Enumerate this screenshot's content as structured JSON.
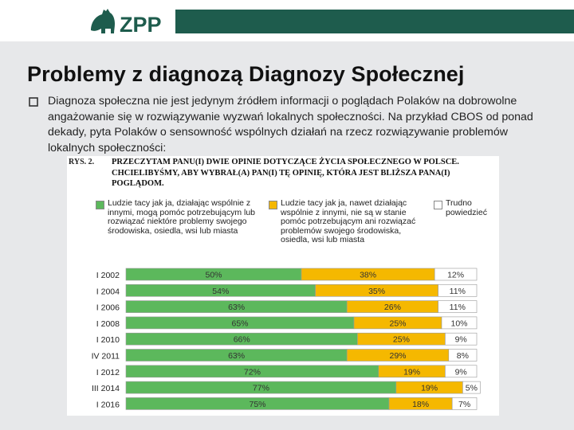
{
  "header": {
    "logo_text": "ZPP",
    "brand_color": "#1e5c4d"
  },
  "slide": {
    "title": "Problemy z diagnozą Diagnozy Społecznej",
    "bullet_text": "Diagnoza społeczna nie jest jedynym źródłem informacji o poglądach Polaków na dobrowolne angażowanie się w rozwiązywanie wyzwań lokalnych społeczności. Na przykład CBOS od ponad dekady, pyta Polaków o sensowność wspólnych działań na rzecz rozwiązywanie problemów lokalnych społeczności:"
  },
  "figure": {
    "label": "RYS. 2.",
    "question": "PRZECZYTAM PANU(I) DWIE OPINIE DOTYCZĄCE ŻYCIA SPOŁECZNEGO W POLSCE. CHCIELIBYŚMY, ABY WYBRAŁ(A) PAN(I) TĘ OPINIĘ, KTÓRA JEST BLIŻSZA PANA(I) POGLĄDOM."
  },
  "chart_data": {
    "type": "bar",
    "orientation": "horizontal",
    "stacked": true,
    "percent": true,
    "categories": [
      "I 2002",
      "I 2004",
      "I 2006",
      "I 2008",
      "I 2010",
      "IV 2011",
      "I 2012",
      "III 2014",
      "I 2016"
    ],
    "series": [
      {
        "name": "Ludzie tacy jak ja, działając wspólnie z innymi, mogą pomóc potrzebującym lub rozwiązać niektóre problemy swojego środowiska, osiedla, wsi lub miasta",
        "color": "#5cb85c",
        "values": [
          50,
          54,
          63,
          65,
          66,
          63,
          72,
          77,
          75
        ],
        "labels": [
          "50%",
          "54%",
          "63%",
          "65%",
          "66%",
          "63%",
          "72%",
          "77%",
          "75%"
        ]
      },
      {
        "name": "Ludzie tacy jak ja, nawet działając wspólnie z innymi, nie są w stanie pomóc potrzebującym ani rozwiązać problemów swojego środowiska, osiedla, wsi lub miasta",
        "color": "#f5b800",
        "values": [
          38,
          35,
          26,
          25,
          25,
          29,
          19,
          19,
          18
        ],
        "labels": [
          "38%",
          "35%",
          "26%",
          "25%",
          "25%",
          "29%",
          "19%",
          "19%",
          "18%"
        ]
      },
      {
        "name": "Trudno powiedzieć",
        "color": "#ffffff",
        "values": [
          12,
          11,
          11,
          10,
          9,
          8,
          9,
          5,
          7
        ],
        "labels": [
          "12%",
          "11%",
          "11%",
          "10%",
          "9%",
          "8%",
          "9%",
          "5%",
          "7%"
        ]
      }
    ],
    "xlim": [
      0,
      100
    ],
    "legend": "top"
  }
}
